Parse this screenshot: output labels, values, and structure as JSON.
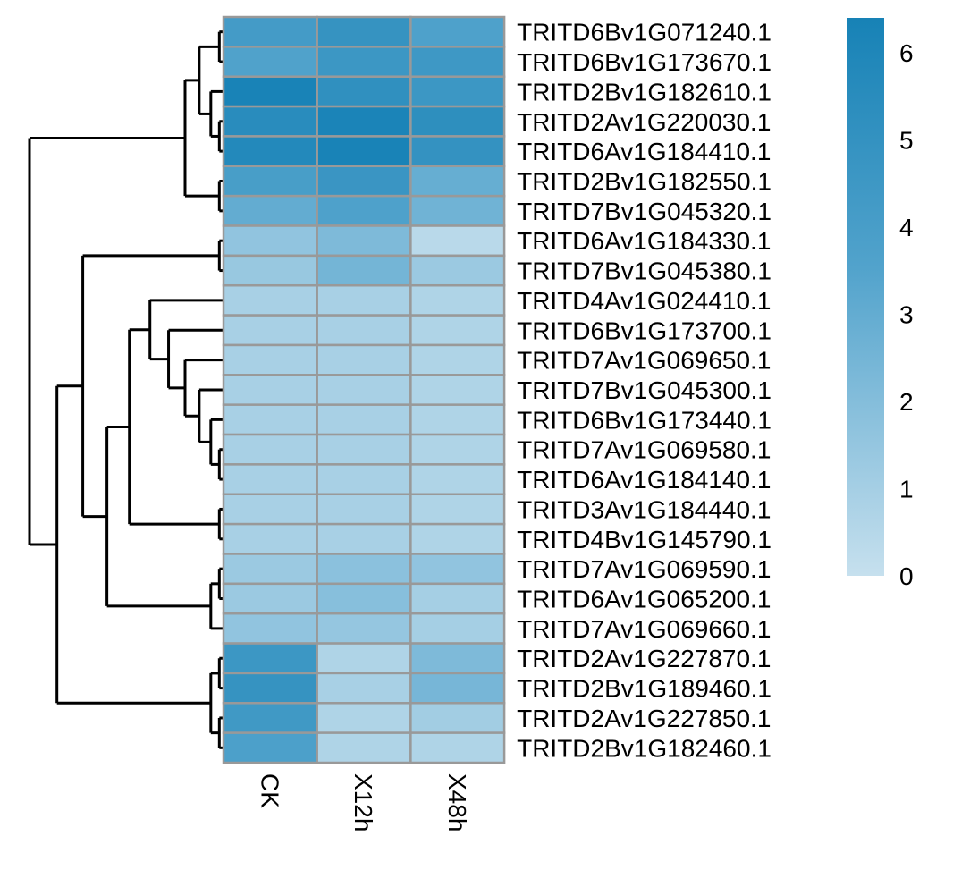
{
  "chart_data": {
    "type": "heatmap",
    "title": "",
    "columns": [
      "CK",
      "X12h",
      "X48h"
    ],
    "rows": [
      "TRITD6Bv1G071240.1",
      "TRITD6Bv1G173670.1",
      "TRITD2Bv1G182610.1",
      "TRITD2Av1G220030.1",
      "TRITD6Av1G184410.1",
      "TRITD2Bv1G182550.1",
      "TRITD7Bv1G045320.1",
      "TRITD6Av1G184330.1",
      "TRITD7Bv1G045380.1",
      "TRITD4Av1G024410.1",
      "TRITD6Bv1G173700.1",
      "TRITD7Av1G069650.1",
      "TRITD7Bv1G045300.1",
      "TRITD6Bv1G173440.1",
      "TRITD7Av1G069580.1",
      "TRITD6Av1G184140.1",
      "TRITD3Av1G184440.1",
      "TRITD4Bv1G145790.1",
      "TRITD7Av1G069590.1",
      "TRITD6Av1G065200.1",
      "TRITD7Av1G069660.1",
      "TRITD2Av1G227870.1",
      "TRITD2Bv1G189460.1",
      "TRITD2Av1G227850.1",
      "TRITD2Bv1G182460.1"
    ],
    "values": [
      [
        4.2,
        4.9,
        3.7
      ],
      [
        3.6,
        4.6,
        4.5
      ],
      [
        6.3,
        5.2,
        4.6
      ],
      [
        5.5,
        6.2,
        5.3
      ],
      [
        5.8,
        6.3,
        5.0
      ],
      [
        4.0,
        4.7,
        2.9
      ],
      [
        3.0,
        3.7,
        2.6
      ],
      [
        1.6,
        2.2,
        0.4
      ],
      [
        1.4,
        2.5,
        1.3
      ],
      [
        0.9,
        0.9,
        0.7
      ],
      [
        0.9,
        0.9,
        0.7
      ],
      [
        0.9,
        0.9,
        0.7
      ],
      [
        0.9,
        0.9,
        0.7
      ],
      [
        0.9,
        0.9,
        0.7
      ],
      [
        0.9,
        0.9,
        0.7
      ],
      [
        0.9,
        0.9,
        0.7
      ],
      [
        0.9,
        0.9,
        0.7
      ],
      [
        0.9,
        0.9,
        0.7
      ],
      [
        1.3,
        1.8,
        1.6
      ],
      [
        1.3,
        1.9,
        1.0
      ],
      [
        1.6,
        1.5,
        1.0
      ],
      [
        4.6,
        0.7,
        2.2
      ],
      [
        4.9,
        0.9,
        2.4
      ],
      [
        4.4,
        0.7,
        1.1
      ],
      [
        3.8,
        0.7,
        0.7
      ]
    ],
    "color_scale": {
      "min": 0,
      "max": 6.4,
      "low_color": "#c6e0ee",
      "mid_color": "#52a3cc",
      "high_color": "#1782b6",
      "ticks": [
        0,
        1,
        2,
        3,
        4,
        5,
        6
      ]
    },
    "cell_border_color": "#999999",
    "row_dendrogram": true,
    "legend_position": "right"
  }
}
